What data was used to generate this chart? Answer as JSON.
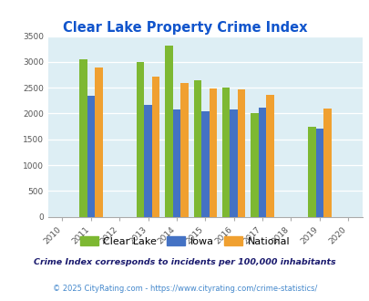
{
  "title": "Clear Lake Property Crime Index",
  "all_years": [
    2010,
    2011,
    2012,
    2013,
    2014,
    2015,
    2016,
    2017,
    2018,
    2019,
    2020
  ],
  "data_years": [
    2011,
    2013,
    2014,
    2015,
    2016,
    2017,
    2019
  ],
  "clear_lake": [
    3050,
    3000,
    3320,
    2640,
    2510,
    2000,
    1740
  ],
  "iowa": [
    2340,
    2160,
    2080,
    2040,
    2080,
    2110,
    1710
  ],
  "national": [
    2900,
    2720,
    2600,
    2490,
    2470,
    2370,
    2100
  ],
  "colors": {
    "clear_lake": "#7db832",
    "iowa": "#4472c4",
    "national": "#f0a030"
  },
  "ylim": [
    0,
    3500
  ],
  "yticks": [
    0,
    500,
    1000,
    1500,
    2000,
    2500,
    3000,
    3500
  ],
  "bg_color": "#ddeef4",
  "legend_labels": [
    "Clear Lake",
    "Iowa",
    "National"
  ],
  "footnote1": "Crime Index corresponds to incidents per 100,000 inhabitants",
  "footnote2": "© 2025 CityRating.com - https://www.cityrating.com/crime-statistics/",
  "title_color": "#1155cc",
  "footnote1_color": "#1a1a6e",
  "footnote2_color": "#4488cc"
}
